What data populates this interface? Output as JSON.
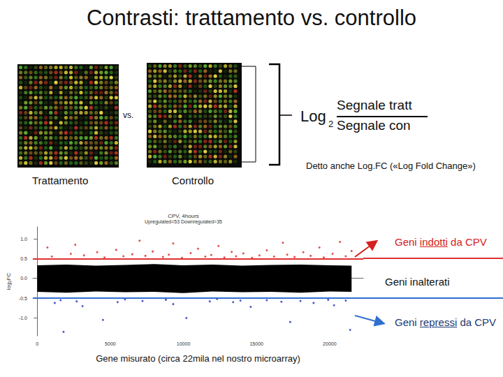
{
  "title": "Contrasti: trattamento vs. controllo",
  "images": {
    "left_label": "Trattamento",
    "right_label": "Controllo",
    "between": "vs."
  },
  "formula": {
    "log": "Log",
    "base": "2",
    "numerator": "Segnale tratt",
    "denominator": "Segnale con",
    "note": "Detto anche Log.FC («Log Fold Change»)"
  },
  "annotations": [
    {
      "before": "Geni ",
      "underlined": "indotti",
      "after": " da CPV",
      "color": "#d42020"
    },
    {
      "before": "Geni inalterati",
      "underlined": "",
      "after": "",
      "color": "#111111"
    },
    {
      "before": "Geni ",
      "underlined": "repressi",
      "after": " da CPV",
      "color": "#1f3a70"
    }
  ],
  "chart_data": {
    "type": "scatter",
    "title": "CPV, 4hours",
    "subtitle": "Upregulated=53 Downregulated=35",
    "x_label": "Gene misurato (circa 22mila nel nostro microarray)",
    "y_label": "log₂FC",
    "xlim": [
      -300,
      22300
    ],
    "xticks": [
      0,
      5000,
      10000,
      15000,
      20000
    ],
    "ylim": [
      -1.45,
      1.3
    ],
    "yticks": [
      {
        "value": -1,
        "label": "-1.0"
      },
      {
        "value": -0.5,
        "label": "-0.5"
      },
      {
        "value": 0,
        "label": "0.0"
      },
      {
        "value": 0.5,
        "label": "0.5"
      },
      {
        "value": 1,
        "label": "1.0"
      }
    ],
    "grid": false,
    "band": {
      "color": "#000000",
      "x": [
        0,
        2000,
        4000,
        6000,
        8000,
        10000,
        12000,
        14000,
        16000,
        18000,
        20000,
        21500
      ],
      "lower": [
        -0.34,
        -0.36,
        -0.33,
        -0.35,
        -0.34,
        -0.37,
        -0.33,
        -0.35,
        -0.34,
        -0.36,
        -0.33,
        -0.34
      ],
      "upper": [
        0.33,
        0.35,
        0.32,
        0.34,
        0.36,
        0.33,
        0.35,
        0.32,
        0.34,
        0.35,
        0.33,
        0.32
      ]
    },
    "thresholds": [
      {
        "value": 0.5,
        "color": "#e03030"
      },
      {
        "value": -0.5,
        "color": "#2f6fd0"
      }
    ],
    "series": [
      {
        "name": "Upregulated",
        "color": "#e02020",
        "marker": "circle",
        "x": [
          700,
          1000,
          2300,
          2600,
          3200,
          4100,
          4600,
          5400,
          5900,
          6500,
          7000,
          7400,
          7900,
          8600,
          9000,
          9300,
          9900,
          10500,
          11000,
          11500,
          11900,
          12400,
          12800,
          13300,
          13600,
          14100,
          14700,
          15200,
          15700,
          16200,
          16800,
          17100,
          17600,
          18200,
          18700,
          19300,
          19600,
          20200,
          20700,
          21100,
          21500
        ],
        "values": [
          0.78,
          0.55,
          0.62,
          0.85,
          0.58,
          0.66,
          0.53,
          0.72,
          0.56,
          0.61,
          0.95,
          0.57,
          0.68,
          0.54,
          0.6,
          0.88,
          0.52,
          0.64,
          0.75,
          0.55,
          0.59,
          0.82,
          0.53,
          0.67,
          0.56,
          0.63,
          0.52,
          0.58,
          0.71,
          0.55,
          0.9,
          0.6,
          0.54,
          0.66,
          0.57,
          0.78,
          0.53,
          0.62,
          0.92,
          0.56,
          0.69
        ]
      },
      {
        "name": "Downregulated",
        "color": "#2030c0",
        "marker": "circle",
        "x": [
          1200,
          1600,
          1800,
          2700,
          3100,
          4500,
          5500,
          6000,
          7200,
          8800,
          9300,
          10200,
          11800,
          12300,
          13400,
          13900,
          14600,
          15700,
          16700,
          17300,
          18000,
          18900,
          19900,
          20300,
          21100,
          21400
        ],
        "values": [
          -0.62,
          -0.55,
          -1.35,
          -0.58,
          -0.7,
          -1.05,
          -0.6,
          -0.53,
          -0.57,
          -0.54,
          -0.65,
          -1.0,
          -0.58,
          -0.52,
          -0.6,
          -0.56,
          -0.72,
          -0.55,
          -0.59,
          -1.1,
          -0.57,
          -0.62,
          -0.54,
          -0.68,
          -0.56,
          -1.3
        ]
      }
    ]
  }
}
